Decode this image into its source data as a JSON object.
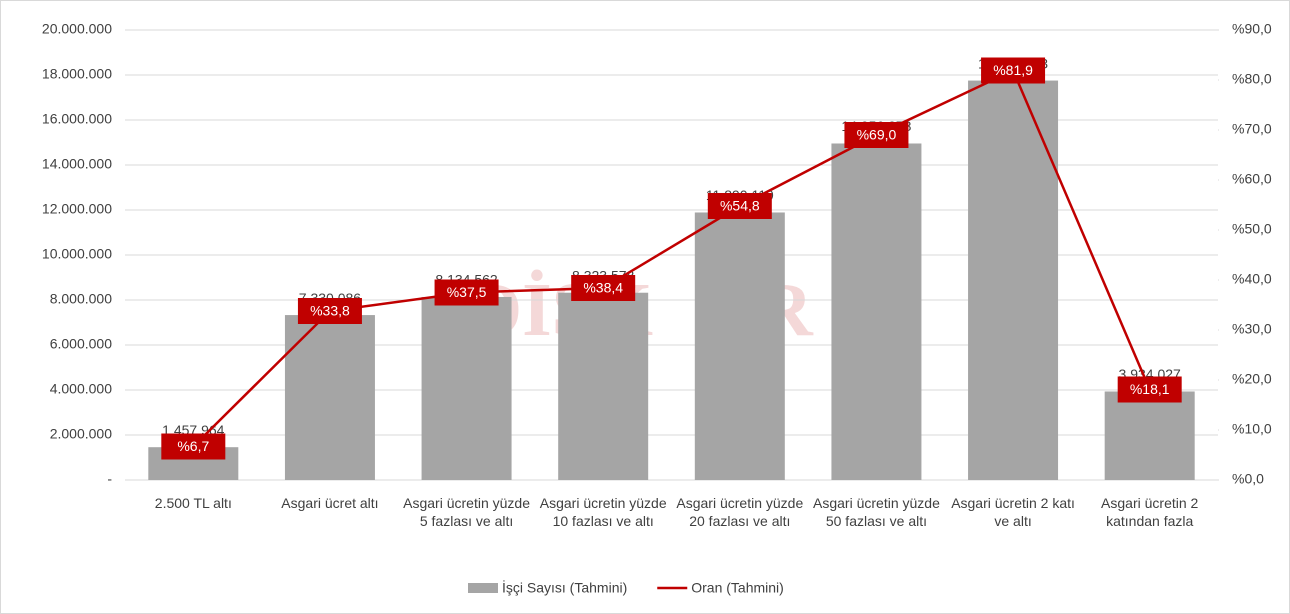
{
  "chart_data": {
    "type": "bar",
    "watermark": [
      "DİSK",
      "AR"
    ],
    "categories": [
      "2.500 TL altı",
      "Asgari ücret altı",
      "Asgari ücretin yüzde 5 fazlası ve altı",
      "Asgari ücretin yüzde 10 fazlası ve altı",
      "Asgari ücretin yüzde 20 fazlası ve altı",
      "Asgari ücretin yüzde 50 fazlası ve altı",
      "Asgari ücretin 2 katı ve altı",
      "Asgari ücretin 2 katından fazla"
    ],
    "series": [
      {
        "name": "İşçi Sayısı (Tahmini)",
        "type": "bar",
        "color": "#a5a5a5",
        "values": [
          1457964,
          7330086,
          8134562,
          8323578,
          11890119,
          14956078,
          17752973,
          3934027
        ],
        "value_labels": [
          "1.457.964",
          "7.330.086",
          "8.134.562",
          "8.323.578",
          "11.890.119",
          "14.956.078",
          "17.752.973",
          "3.934.027"
        ]
      },
      {
        "name": "Oran (Tahmini)",
        "type": "line",
        "axis": "y2",
        "color": "#c00000",
        "values": [
          6.7,
          33.8,
          37.5,
          38.4,
          54.8,
          69.0,
          81.9,
          18.1
        ],
        "value_labels": [
          "%6,7",
          "%33,8",
          "%37,5",
          "%38,4",
          "%54,8",
          "%69,0",
          "%81,9",
          "%18,1"
        ]
      }
    ],
    "ylim": [
      0,
      20000000
    ],
    "yticks": [
      {
        "value": 0,
        "label": "-"
      },
      {
        "value": 2000000,
        "label": "2.000.000"
      },
      {
        "value": 4000000,
        "label": "4.000.000"
      },
      {
        "value": 6000000,
        "label": "6.000.000"
      },
      {
        "value": 8000000,
        "label": "8.000.000"
      },
      {
        "value": 10000000,
        "label": "10.000.000"
      },
      {
        "value": 12000000,
        "label": "12.000.000"
      },
      {
        "value": 14000000,
        "label": "14.000.000"
      },
      {
        "value": 16000000,
        "label": "16.000.000"
      },
      {
        "value": 18000000,
        "label": "18.000.000"
      },
      {
        "value": 20000000,
        "label": "20.000.000"
      }
    ],
    "y2lim": [
      0,
      90
    ],
    "y2ticks": [
      {
        "value": 0,
        "label": "%0,0"
      },
      {
        "value": 10,
        "label": "%10,0"
      },
      {
        "value": 20,
        "label": "%20,0"
      },
      {
        "value": 30,
        "label": "%30,0"
      },
      {
        "value": 40,
        "label": "%40,0"
      },
      {
        "value": 50,
        "label": "%50,0"
      },
      {
        "value": 60,
        "label": "%60,0"
      },
      {
        "value": 70,
        "label": "%70,0"
      },
      {
        "value": 80,
        "label": "%80,0"
      },
      {
        "value": 90,
        "label": "%90,0"
      }
    ],
    "grid": true,
    "legend": "bottom"
  }
}
